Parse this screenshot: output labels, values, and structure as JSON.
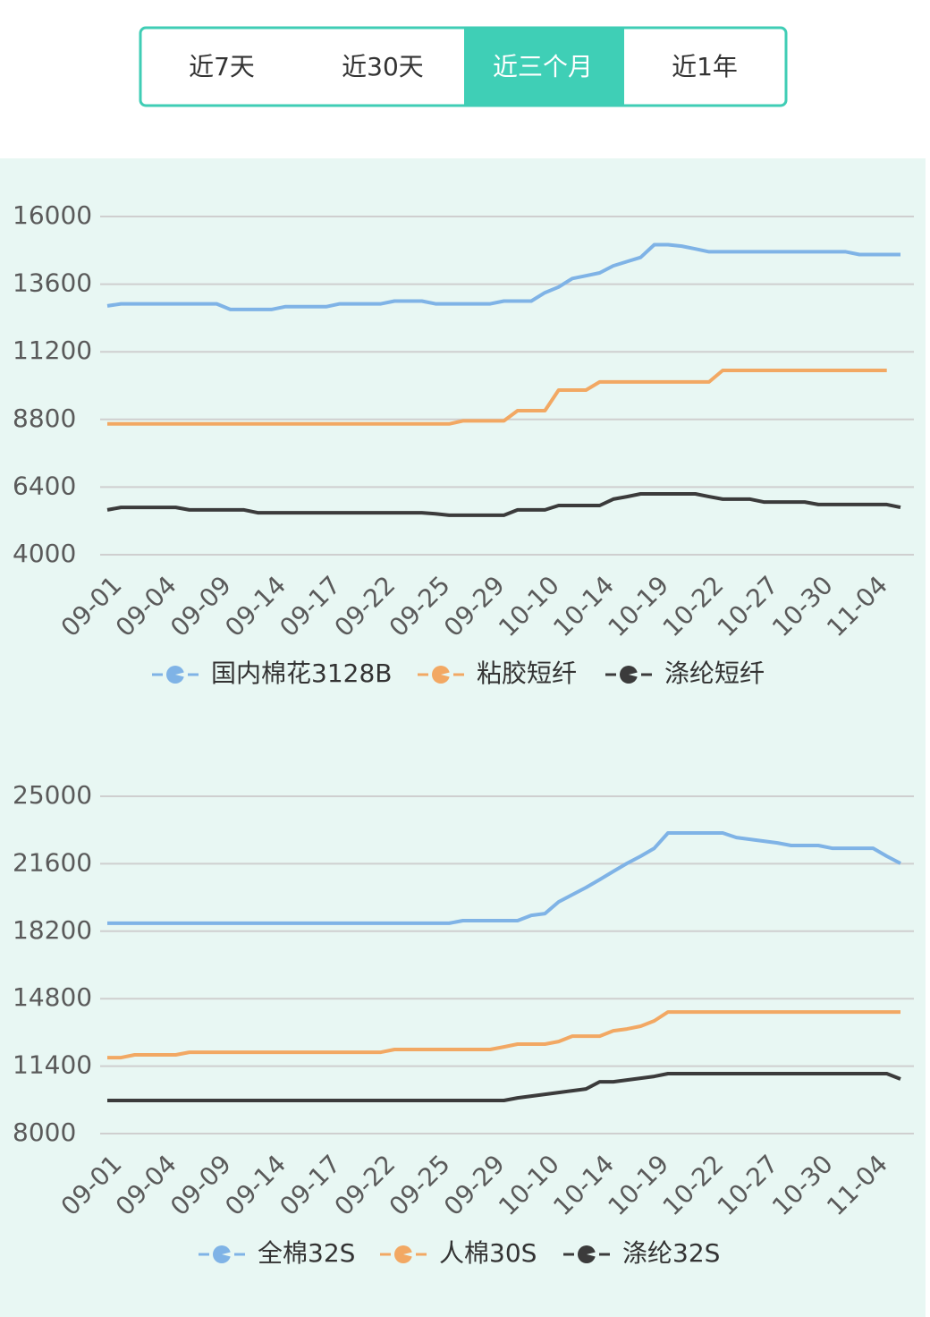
{
  "tabs": [
    "近7天",
    "近30天",
    "近三个月",
    "近1年"
  ],
  "chart_data": [
    {
      "type": "line",
      "categories": [
        "09-01",
        null,
        null,
        null,
        "09-04",
        null,
        null,
        null,
        "09-09",
        null,
        null,
        null,
        "09-14",
        null,
        null,
        null,
        "09-17",
        null,
        null,
        null,
        "09-22",
        null,
        null,
        null,
        "09-25",
        null,
        null,
        null,
        "09-29",
        null,
        null,
        null,
        "10-10",
        null,
        null,
        null,
        "10-14",
        null,
        null,
        null,
        "10-19",
        null,
        null,
        null,
        "10-22",
        null,
        null,
        null,
        "10-27",
        null,
        null,
        null,
        "10-30",
        null,
        null,
        null,
        "11-04",
        null,
        null
      ],
      "ylim": [
        4000,
        16000
      ],
      "yticks": [
        4000,
        6400,
        8800,
        11200,
        13600,
        16000
      ],
      "grid": true,
      "legend": "bottom",
      "series": [
        {
          "name": "国内棉花3128B",
          "color": "#7fb3e6",
          "values": [
            12830,
            12900,
            12900,
            12900,
            12900,
            12900,
            12900,
            12900,
            12900,
            12700,
            12700,
            12700,
            12700,
            12800,
            12800,
            12800,
            12800,
            12900,
            12900,
            12900,
            12900,
            13000,
            13000,
            13000,
            12900,
            12900,
            12900,
            12900,
            12900,
            13000,
            13000,
            13000,
            13300,
            13500,
            13800,
            13900,
            14000,
            14250,
            14400,
            14550,
            15000,
            15000,
            14950,
            14850,
            14750,
            14750,
            14750,
            14750,
            14750,
            14750,
            14750,
            14750,
            14750,
            14750,
            14750,
            14650,
            14650,
            14650,
            14650
          ]
        },
        {
          "name": "粘胶短纤",
          "color": "#f2a863",
          "values": [
            8640,
            8640,
            8640,
            8640,
            8640,
            8640,
            8640,
            8640,
            8640,
            8640,
            8640,
            8640,
            8640,
            8640,
            8640,
            8640,
            8640,
            8640,
            8640,
            8640,
            8640,
            8640,
            8640,
            8640,
            8640,
            8640,
            8750,
            8750,
            8750,
            8750,
            9110,
            9110,
            9110,
            9840,
            9840,
            9840,
            10130,
            10130,
            10130,
            10130,
            10130,
            10130,
            10130,
            10130,
            10130,
            10540,
            10540,
            10540,
            10540,
            10540,
            10540,
            10540,
            10540,
            10540,
            10540,
            10540,
            10540,
            10540,
            null
          ]
        },
        {
          "name": "涤纶短纤",
          "color": "#3b3b3b",
          "values": [
            5590,
            5680,
            5680,
            5680,
            5680,
            5680,
            5590,
            5590,
            5590,
            5590,
            5590,
            5490,
            5490,
            5490,
            5490,
            5490,
            5490,
            5490,
            5490,
            5490,
            5490,
            5490,
            5490,
            5490,
            5450,
            5400,
            5400,
            5400,
            5400,
            5400,
            5590,
            5590,
            5590,
            5745,
            5745,
            5745,
            5745,
            5970,
            6060,
            6160,
            6160,
            6160,
            6160,
            6160,
            6060,
            5970,
            5970,
            5970,
            5870,
            5870,
            5870,
            5870,
            5780,
            5780,
            5780,
            5780,
            5780,
            5780,
            5680
          ]
        }
      ]
    },
    {
      "type": "line",
      "categories": [
        "09-01",
        null,
        null,
        null,
        "09-04",
        null,
        null,
        null,
        "09-09",
        null,
        null,
        null,
        "09-14",
        null,
        null,
        null,
        "09-17",
        null,
        null,
        null,
        "09-22",
        null,
        null,
        null,
        "09-25",
        null,
        null,
        null,
        "09-29",
        null,
        null,
        null,
        "10-10",
        null,
        null,
        null,
        "10-14",
        null,
        null,
        null,
        "10-19",
        null,
        null,
        null,
        "10-22",
        null,
        null,
        null,
        "10-27",
        null,
        null,
        null,
        "10-30",
        null,
        null,
        null,
        "11-04",
        null,
        null
      ],
      "ylim": [
        8000,
        25000
      ],
      "yticks": [
        8000,
        11400,
        14800,
        18200,
        21600,
        25000
      ],
      "grid": true,
      "legend": "bottom",
      "series": [
        {
          "name": "全棉32S",
          "color": "#7fb3e6",
          "values": [
            18600,
            18600,
            18600,
            18600,
            18600,
            18600,
            18600,
            18600,
            18600,
            18600,
            18600,
            18600,
            18600,
            18600,
            18600,
            18600,
            18600,
            18600,
            18600,
            18600,
            18600,
            18600,
            18600,
            18600,
            18600,
            18600,
            18730,
            18730,
            18730,
            18730,
            18730,
            19000,
            19090,
            19680,
            20040,
            20400,
            20800,
            21210,
            21620,
            21980,
            22380,
            23150,
            23150,
            23150,
            23150,
            23150,
            22920,
            22830,
            22740,
            22650,
            22520,
            22520,
            22520,
            22380,
            22380,
            22380,
            22380,
            21980,
            21620
          ]
        },
        {
          "name": "人棉30S",
          "color": "#f2a863",
          "values": [
            11830,
            11830,
            11970,
            11970,
            11970,
            11970,
            12100,
            12100,
            12100,
            12100,
            12100,
            12100,
            12100,
            12100,
            12100,
            12100,
            12100,
            12100,
            12100,
            12100,
            12100,
            12240,
            12240,
            12240,
            12240,
            12240,
            12240,
            12240,
            12240,
            12370,
            12510,
            12510,
            12510,
            12640,
            12910,
            12910,
            12910,
            13180,
            13270,
            13410,
            13680,
            14130,
            14130,
            14130,
            14130,
            14130,
            14130,
            14130,
            14130,
            14130,
            14130,
            14130,
            14130,
            14130,
            14130,
            14130,
            14130,
            14130,
            14130
          ]
        },
        {
          "name": "涤纶32S",
          "color": "#3b3b3b",
          "values": [
            9670,
            9670,
            9670,
            9670,
            9670,
            9670,
            9670,
            9670,
            9670,
            9670,
            9670,
            9670,
            9670,
            9670,
            9670,
            9670,
            9670,
            9670,
            9670,
            9670,
            9670,
            9670,
            9670,
            9670,
            9670,
            9670,
            9670,
            9670,
            9670,
            9670,
            9800,
            9890,
            9980,
            10070,
            10160,
            10250,
            10610,
            10610,
            10700,
            10790,
            10880,
            11020,
            11020,
            11020,
            11020,
            11020,
            11020,
            11020,
            11020,
            11020,
            11020,
            11020,
            11020,
            11020,
            11020,
            11020,
            11020,
            11020,
            10750
          ]
        }
      ]
    }
  ]
}
